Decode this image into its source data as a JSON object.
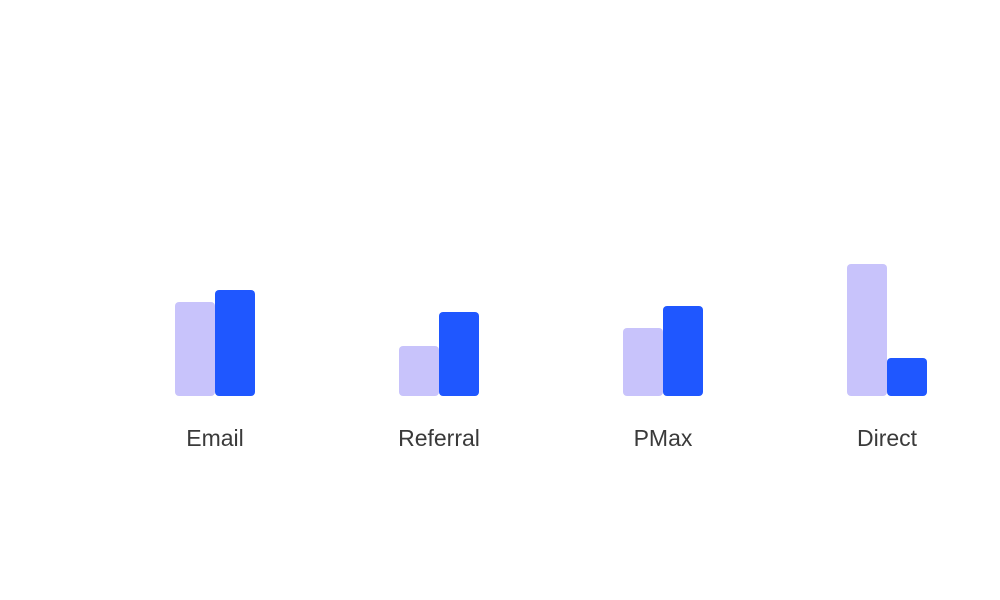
{
  "chart_data": {
    "type": "bar",
    "title": "",
    "xlabel": "",
    "ylabel": "",
    "categories": [
      "Email",
      "Referral",
      "PMax",
      "Direct"
    ],
    "series": [
      {
        "values": [
          94,
          50,
          68,
          132
        ],
        "color": "#c8c3fb"
      },
      {
        "values": [
          106,
          84,
          90,
          38
        ],
        "color": "#1f57ff"
      }
    ],
    "ylim": [
      0,
      132
    ],
    "grid": false,
    "legend": "none"
  }
}
